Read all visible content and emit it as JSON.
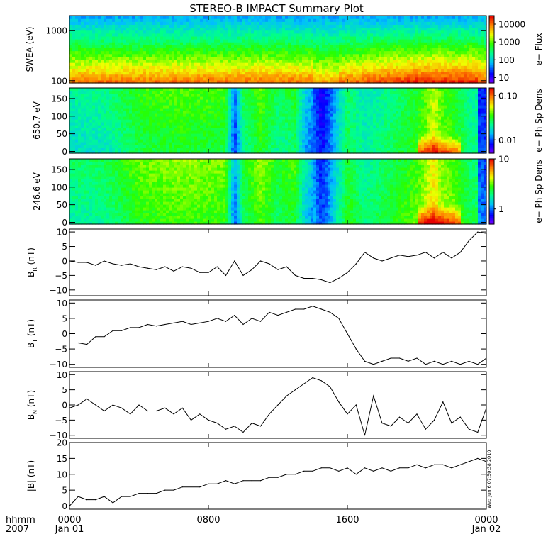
{
  "chart_data": {
    "type": "line",
    "title": "STEREO-B IMPACT Summary Plot",
    "time_axis": {
      "row_label_1": "hhmm",
      "row_label_2": "2007",
      "ticks": [
        {
          "hours": 0,
          "label": "0000",
          "date": "Jan 01"
        },
        {
          "hours": 8,
          "label": "0800",
          "date": ""
        },
        {
          "hours": 16,
          "label": "1600",
          "date": ""
        },
        {
          "hours": 24,
          "label": "0000",
          "date": "Jan 02"
        }
      ],
      "range_hours": [
        0,
        24
      ]
    },
    "timestamp_note": "Wed Jun  6 07:50:38 2010",
    "spectrograms": [
      {
        "id": "swea",
        "ylabel": "SWEA (eV)",
        "yscale": "log",
        "ylim": [
          90,
          2000
        ],
        "yticks": [
          {
            "v": 100,
            "t": "100"
          },
          {
            "v": 1000,
            "t": "1000"
          }
        ],
        "colorbar_label": "e− Flux",
        "colorbar_scale": "log",
        "colorbar_range": [
          5,
          30000
        ],
        "colorbar_ticks": [
          {
            "v": 10,
            "t": "10"
          },
          {
            "v": 100,
            "t": "100"
          },
          {
            "v": 1000,
            "t": "1000"
          },
          {
            "v": 10000,
            "t": "10000"
          }
        ]
      },
      {
        "id": "pad650",
        "ylabel": "650.7 eV",
        "yscale": "linear",
        "ylim": [
          -5,
          180
        ],
        "yticks": [
          {
            "v": 0,
            "t": "0"
          },
          {
            "v": 50,
            "t": "50"
          },
          {
            "v": 100,
            "t": "100"
          },
          {
            "v": 150,
            "t": "150"
          }
        ],
        "colorbar_label": "e− Ph Sp Dens",
        "colorbar_scale": "log",
        "colorbar_range": [
          0.005,
          0.15
        ],
        "colorbar_ticks": [
          {
            "v": 0.01,
            "t": "0.01"
          },
          {
            "v": 0.1,
            "t": "0.10"
          }
        ]
      },
      {
        "id": "pad246",
        "ylabel": "246.6 eV",
        "yscale": "linear",
        "ylim": [
          -5,
          180
        ],
        "yticks": [
          {
            "v": 0,
            "t": "0"
          },
          {
            "v": 50,
            "t": "50"
          },
          {
            "v": 100,
            "t": "100"
          },
          {
            "v": 150,
            "t": "150"
          }
        ],
        "colorbar_label": "e− Ph Sp Dens",
        "colorbar_scale": "log",
        "colorbar_range": [
          0.5,
          10
        ],
        "colorbar_ticks": [
          {
            "v": 1,
            "t": "1"
          },
          {
            "v": 10,
            "t": "10"
          }
        ]
      }
    ],
    "line_panels": [
      {
        "id": "br",
        "ylabel_main": "B",
        "ylabel_sub": "R",
        "ylabel_tail": " (nT)",
        "ylim": [
          -12,
          11
        ],
        "yticks": [
          {
            "v": -10,
            "t": "−10"
          },
          {
            "v": -5,
            "t": "−5"
          },
          {
            "v": 0,
            "t": "0"
          },
          {
            "v": 5,
            "t": "5"
          },
          {
            "v": 10,
            "t": "10"
          }
        ],
        "x": [
          0,
          0.5,
          1,
          1.5,
          2,
          2.5,
          3,
          3.5,
          4,
          4.5,
          5,
          5.5,
          6,
          6.5,
          7,
          7.5,
          8,
          8.5,
          9,
          9.5,
          10,
          10.5,
          11,
          11.5,
          12,
          12.5,
          13,
          13.5,
          14,
          14.5,
          15,
          15.5,
          16,
          16.5,
          17,
          17.5,
          18,
          18.5,
          19,
          19.5,
          20,
          20.5,
          21,
          21.5,
          22,
          22.5,
          23,
          23.5,
          24
        ],
        "values": [
          0,
          -0.5,
          -0.5,
          -1.5,
          0,
          -1,
          -1.5,
          -1,
          -2,
          -2.5,
          -3,
          -2,
          -3.5,
          -2,
          -2.5,
          -4,
          -4,
          -2,
          -5,
          0,
          -5,
          -3,
          0,
          -1,
          -3,
          -2,
          -5,
          -6,
          -6,
          -6.5,
          -7.5,
          -6,
          -4,
          -1,
          3,
          1,
          0,
          1,
          2,
          1.5,
          2,
          3,
          1,
          3,
          1,
          3,
          7,
          10,
          9.5
        ]
      },
      {
        "id": "bt",
        "ylabel_main": "B",
        "ylabel_sub": "T",
        "ylabel_tail": " (nT)",
        "ylim": [
          -11,
          11
        ],
        "yticks": [
          {
            "v": -10,
            "t": "−10"
          },
          {
            "v": -5,
            "t": "−5"
          },
          {
            "v": 0,
            "t": "0"
          },
          {
            "v": 5,
            "t": "5"
          },
          {
            "v": 10,
            "t": "10"
          }
        ],
        "x": [
          0,
          0.5,
          1,
          1.5,
          2,
          2.5,
          3,
          3.5,
          4,
          4.5,
          5,
          5.5,
          6,
          6.5,
          7,
          7.5,
          8,
          8.5,
          9,
          9.5,
          10,
          10.5,
          11,
          11.5,
          12,
          12.5,
          13,
          13.5,
          14,
          14.5,
          15,
          15.5,
          16,
          16.5,
          17,
          17.5,
          18,
          18.5,
          19,
          19.5,
          20,
          20.5,
          21,
          21.5,
          22,
          22.5,
          23,
          23.5,
          24
        ],
        "values": [
          -3,
          -3,
          -3.5,
          -1,
          -1,
          1,
          1,
          2,
          2,
          3,
          2.5,
          3,
          3.5,
          4,
          3,
          3.5,
          4,
          5,
          4,
          6,
          3,
          5,
          4,
          7,
          6,
          7,
          8,
          8,
          9,
          8,
          7,
          5,
          0,
          -5,
          -9,
          -10,
          -9,
          -8,
          -8,
          -9,
          -8,
          -10,
          -9,
          -10,
          -9,
          -10,
          -9,
          -10,
          -8
        ]
      },
      {
        "id": "bn",
        "ylabel_main": "B",
        "ylabel_sub": "N",
        "ylabel_tail": " (nT)",
        "ylim": [
          -11,
          11
        ],
        "yticks": [
          {
            "v": -10,
            "t": "−10"
          },
          {
            "v": -5,
            "t": "−5"
          },
          {
            "v": 0,
            "t": "0"
          },
          {
            "v": 5,
            "t": "5"
          },
          {
            "v": 10,
            "t": "10"
          }
        ],
        "x": [
          0,
          0.5,
          1,
          1.5,
          2,
          2.5,
          3,
          3.5,
          4,
          4.5,
          5,
          5.5,
          6,
          6.5,
          7,
          7.5,
          8,
          8.5,
          9,
          9.5,
          10,
          10.5,
          11,
          11.5,
          12,
          12.5,
          13,
          13.5,
          14,
          14.5,
          15,
          15.5,
          16,
          16.5,
          17,
          17.5,
          18,
          18.5,
          19,
          19.5,
          20,
          20.5,
          21,
          21.5,
          22,
          22.5,
          23,
          23.5,
          24
        ],
        "values": [
          -1,
          0,
          2,
          0,
          -2,
          0,
          -1,
          -3,
          0,
          -2,
          -2,
          -1,
          -3,
          -1,
          -5,
          -3,
          -5,
          -6,
          -8,
          -7,
          -9,
          -6,
          -7,
          -3,
          0,
          3,
          5,
          7,
          9,
          8,
          6,
          1,
          -3,
          0,
          -10,
          3,
          -6,
          -7,
          -4,
          -6,
          -3,
          -8,
          -5,
          1,
          -6,
          -4,
          -8,
          -9,
          -1
        ]
      },
      {
        "id": "bmag",
        "ylabel_main": "|B| (nT)",
        "ylabel_sub": "",
        "ylabel_tail": "",
        "ylim": [
          -1,
          20
        ],
        "yticks": [
          {
            "v": 0,
            "t": "0"
          },
          {
            "v": 5,
            "t": "5"
          },
          {
            "v": 10,
            "t": "10"
          },
          {
            "v": 15,
            "t": "15"
          },
          {
            "v": 20,
            "t": "20"
          }
        ],
        "x": [
          0,
          0.5,
          1,
          1.5,
          2,
          2.5,
          3,
          3.5,
          4,
          4.5,
          5,
          5.5,
          6,
          6.5,
          7,
          7.5,
          8,
          8.5,
          9,
          9.5,
          10,
          10.5,
          11,
          11.5,
          12,
          12.5,
          13,
          13.5,
          14,
          14.5,
          15,
          15.5,
          16,
          16.5,
          17,
          17.5,
          18,
          18.5,
          19,
          19.5,
          20,
          20.5,
          21,
          21.5,
          22,
          22.5,
          23,
          23.5,
          24
        ],
        "values": [
          0,
          3,
          2,
          2,
          3,
          1,
          3,
          3,
          4,
          4,
          4,
          5,
          5,
          6,
          6,
          6,
          7,
          7,
          8,
          7,
          8,
          8,
          8,
          9,
          9,
          10,
          10,
          11,
          11,
          12,
          12,
          11,
          12,
          10,
          12,
          11,
          12,
          11,
          12,
          12,
          13,
          12,
          13,
          13,
          12,
          13,
          14,
          15,
          14
        ]
      }
    ]
  }
}
